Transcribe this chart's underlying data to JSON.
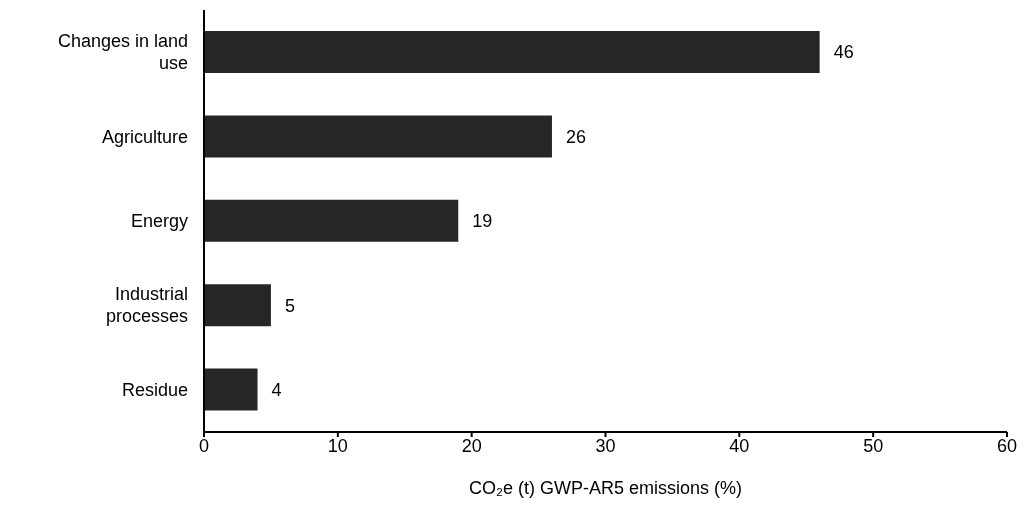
{
  "chart_data": {
    "type": "bar",
    "orientation": "horizontal",
    "categories": [
      "Changes in land use",
      "Agriculture",
      "Energy",
      "Industrial processes",
      "Residue"
    ],
    "values": [
      46,
      26,
      19,
      5,
      4
    ],
    "color": "#262626",
    "xlabel": "CO₂e (t) GWP-AR5 emissions (%)",
    "xlim": [
      0,
      60
    ],
    "xticks": [
      0,
      10,
      20,
      30,
      40,
      50,
      60
    ],
    "data_labels": true,
    "grid": false,
    "legend": false
  }
}
